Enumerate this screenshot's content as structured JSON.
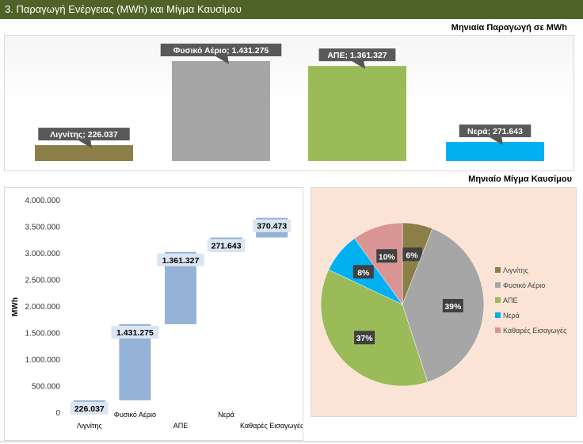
{
  "header": {
    "title": "3. Παραγωγή Ενέργειας (MWh) και Μίγμα Καυσίμου"
  },
  "subtitles": {
    "top": "Μηνιαία Παραγωγή σε MWh",
    "mix": "Μηνιαίο Μίγμα Καυσίμου"
  },
  "colors": {
    "header": "#4f6228",
    "lignite": "#8b7e46",
    "gas": "#a6a6a6",
    "res": "#9bbb59",
    "water": "#00b0f0",
    "imports": "#d99594",
    "waterfall": "#95b3d7"
  },
  "chart_data": [
    {
      "type": "bar",
      "title": "Μηνιαία Παραγωγή σε MWh",
      "categories": [
        "Λιγνίτης",
        "Φυσικό Αέριο",
        "ΑΠΕ",
        "Νερά"
      ],
      "values": [
        226037,
        1431275,
        1361327,
        271643
      ],
      "data_labels": [
        "Λιγνίτης; 226.037",
        "Φυσικό Αέριο; 1.431.275",
        "ΑΠΕ; 1.361.327",
        "Νερά; 271.643"
      ]
    },
    {
      "type": "bar",
      "subtype": "waterfall",
      "ylabel": "MWh",
      "ylim": [
        0,
        4000000
      ],
      "yticks": [
        "0",
        "500.000",
        "1.000.000",
        "1.500.000",
        "2.000.000",
        "2.500.000",
        "3.000.000",
        "3.500.000",
        "4.000.000"
      ],
      "categories": [
        "Λιγνίτης",
        "Φυσικό Αέριο",
        "ΑΠΕ",
        "Νερά",
        "Καθαρές Εισαγωγές"
      ],
      "values": [
        226037,
        1431275,
        1361327,
        271643,
        370473
      ],
      "data_labels": [
        "226.037",
        "1.431.275",
        "1.361.327",
        "271.643",
        "370.473"
      ]
    },
    {
      "type": "pie",
      "title": "Μηνιαίο Μίγμα Καυσίμου",
      "categories": [
        "Λιγνίτης",
        "Φυσικό Αέριο",
        "ΑΠΕ",
        "Νερά",
        "Καθαρές Εισαγωγές"
      ],
      "values": [
        6,
        39,
        37,
        8,
        10
      ],
      "data_labels": [
        "6%",
        "39%",
        "37%",
        "8%",
        "10%"
      ],
      "legend": "right"
    }
  ]
}
